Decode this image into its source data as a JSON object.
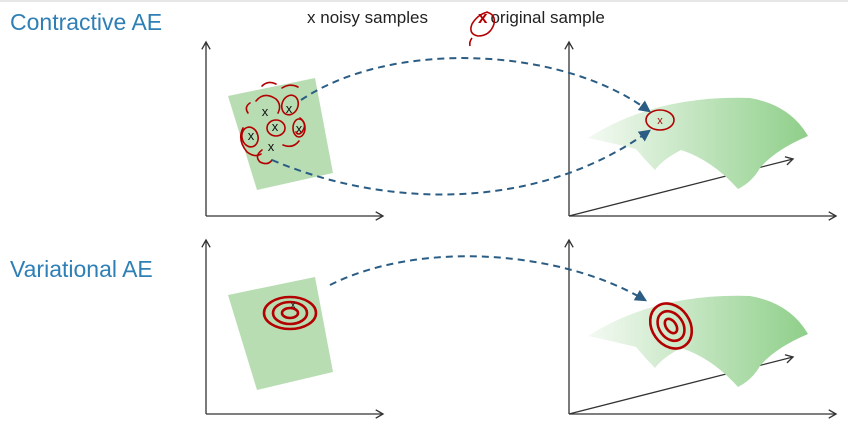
{
  "rows": {
    "contractive": {
      "title": "Contractive AE"
    },
    "variational": {
      "title": "Variational AE"
    }
  },
  "legend": {
    "noisy_marker": "x",
    "noisy_label": "noisy samples",
    "original_marker": "x",
    "original_label": "original sample"
  },
  "sample_marker": "x",
  "colors": {
    "title": "#2e7fb5",
    "patch": "#b9ddb3",
    "surface_light": "#f4faf3",
    "surface_dark": "#8fcf8a",
    "scribble": "#b30000",
    "arrow": "#2b5d84",
    "axis": "#333333"
  }
}
